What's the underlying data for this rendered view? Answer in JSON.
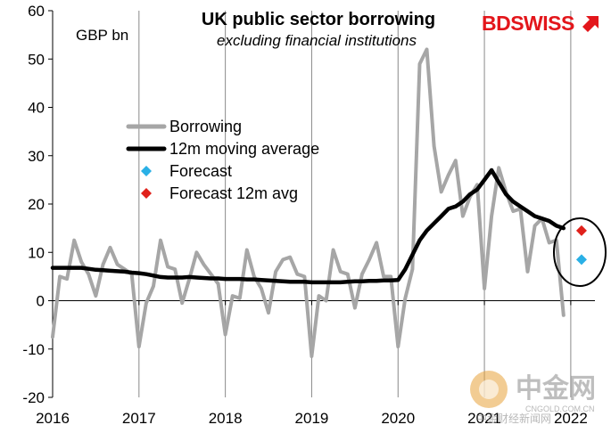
{
  "chart_data": {
    "type": "line",
    "title": "UK public sector borrowing",
    "subtitle": "excluding financial institutions",
    "unit_label": "GBP bn",
    "ylim": [
      -20,
      60
    ],
    "y_ticks": [
      "60",
      "50",
      "40",
      "30",
      "20",
      "10",
      "0",
      "-10",
      "-20"
    ],
    "x_ticks": [
      "2016",
      "2017",
      "2018",
      "2019",
      "2020",
      "2021",
      "2022"
    ],
    "x_range": [
      "2016-01",
      "2022-01"
    ],
    "grid": "vertical gridlines at each year",
    "legend_position": "center-left",
    "series": [
      {
        "name": "Borrowing",
        "color": "#a6a6a6",
        "start": "2016-01",
        "frequency": "monthly",
        "values": [
          -7.5,
          5,
          4.5,
          12.5,
          8,
          5.5,
          1,
          7.5,
          11,
          7.5,
          6.5,
          5.5,
          -9.5,
          -0.5,
          3,
          12.5,
          7,
          6.5,
          -0.5,
          4.5,
          10,
          7.5,
          5.5,
          3.5,
          -7,
          1,
          0.5,
          10.5,
          5,
          2.5,
          -2.5,
          6,
          8.5,
          9,
          5.5,
          5,
          -11.5,
          1,
          0,
          10.5,
          6,
          5.5,
          -1.5,
          5.5,
          8.5,
          12,
          5,
          5,
          -9.5,
          0.5,
          6.5,
          49,
          52,
          32,
          22.5,
          26,
          29,
          17.5,
          21.5,
          24,
          2.5,
          17.5,
          27.5,
          22.5,
          18.5,
          19,
          6,
          15.5,
          17,
          12,
          12.5,
          -3
        ],
        "note": "last value approximately Jan 2022"
      },
      {
        "name": "12m moving average",
        "color": "#000000",
        "start": "2016-01",
        "frequency": "monthly",
        "values": [
          6.8,
          6.8,
          6.8,
          6.8,
          6.8,
          6.6,
          6.4,
          6.3,
          6.2,
          6.1,
          6.0,
          5.8,
          5.7,
          5.5,
          5.2,
          4.9,
          4.8,
          4.8,
          4.8,
          4.9,
          4.8,
          4.7,
          4.6,
          4.6,
          4.5,
          4.5,
          4.5,
          4.4,
          4.4,
          4.3,
          4.2,
          4.1,
          4.0,
          3.9,
          3.9,
          3.9,
          3.8,
          3.8,
          3.8,
          3.8,
          3.8,
          3.9,
          4.0,
          4.0,
          4.1,
          4.1,
          4.2,
          4.2,
          4.3,
          6.5,
          9.5,
          12.5,
          14.5,
          16,
          17.5,
          19,
          19.5,
          20.5,
          22,
          23,
          25,
          27,
          24.5,
          22,
          20.5,
          19.5,
          18.5,
          17.5,
          17,
          16.5,
          15.5,
          15
        ]
      },
      {
        "name": "Forecast",
        "color": "#2ab0e6",
        "marker": "diamond",
        "points": [
          {
            "x": "2022-02",
            "y": 8.5
          }
        ]
      },
      {
        "name": "Forecast 12m avg",
        "color": "#e0211b",
        "marker": "diamond",
        "points": [
          {
            "x": "2022-02",
            "y": 14.5
          }
        ]
      }
    ],
    "annotation": "ellipse circling the forecast points"
  },
  "branding": {
    "logo_text": "BDSWISS",
    "logo_color": "#e3161b",
    "watermark_cn": "中金网",
    "watermark_url": "CNGOLD.COM.CN",
    "watermark_tagline": "中金财经新闻网"
  }
}
